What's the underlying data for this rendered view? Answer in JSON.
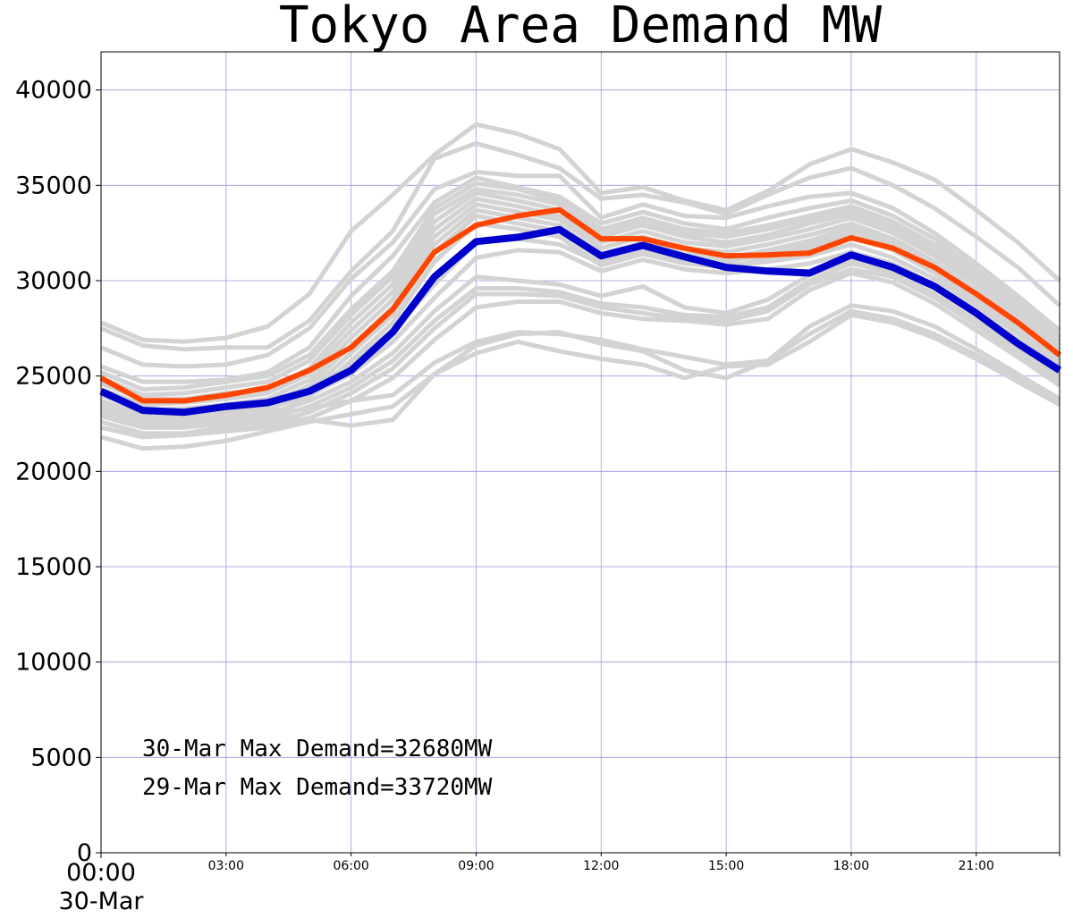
{
  "chart_data": {
    "type": "line",
    "title": "Tokyo Area Demand MW",
    "xlabel": "",
    "ylabel": "",
    "ylim": [
      0,
      42000
    ],
    "xlim": [
      0,
      23
    ],
    "yticks": [
      0,
      5000,
      10000,
      15000,
      20000,
      25000,
      30000,
      35000,
      40000
    ],
    "xticks": [
      {
        "hour": 3,
        "label": "03:00"
      },
      {
        "hour": 6,
        "label": "06:00"
      },
      {
        "hour": 9,
        "label": "09:00"
      },
      {
        "hour": 12,
        "label": "12:00"
      },
      {
        "hour": 15,
        "label": "15:00"
      },
      {
        "hour": 18,
        "label": "18:00"
      },
      {
        "hour": 21,
        "label": "21:00"
      }
    ],
    "x_start_label": "00:00",
    "x_date_label": "30-Mar",
    "grid": true,
    "x": [
      0,
      1,
      2,
      3,
      4,
      5,
      6,
      7,
      8,
      9,
      10,
      11,
      12,
      13,
      14,
      15,
      16,
      17,
      18,
      19,
      20,
      21,
      22,
      23
    ],
    "history": [
      [
        27800,
        26900,
        26800,
        27000,
        27600,
        29300,
        32600,
        34500,
        36600,
        38200,
        37700,
        36900,
        34600,
        34900,
        34200,
        33700,
        34700,
        36100,
        36900,
        36200,
        35300,
        33700,
        32000,
        30000
      ],
      [
        27500,
        26600,
        26400,
        26500,
        26500,
        27900,
        30500,
        32600,
        36400,
        37200,
        36600,
        35900,
        34300,
        34500,
        34100,
        33500,
        34500,
        35400,
        35900,
        35000,
        33800,
        32300,
        30700,
        28700
      ],
      [
        26500,
        25600,
        25500,
        25600,
        26100,
        27500,
        30100,
        32000,
        34800,
        35700,
        35500,
        35500,
        33300,
        34000,
        33400,
        33300,
        33900,
        34400,
        34600,
        33800,
        32500,
        30900,
        29200,
        27400
      ],
      [
        25500,
        24700,
        24700,
        24800,
        25200,
        26500,
        29200,
        31300,
        34100,
        35400,
        34900,
        34400,
        33000,
        33600,
        33000,
        32700,
        33300,
        33800,
        34200,
        33400,
        32200,
        30600,
        28900,
        27100
      ],
      [
        25200,
        24300,
        24400,
        24700,
        25000,
        26100,
        28500,
        30500,
        33800,
        35100,
        34800,
        34200,
        32700,
        33300,
        32700,
        32500,
        32900,
        33400,
        33900,
        33100,
        31900,
        30400,
        28800,
        27000
      ],
      [
        24900,
        24000,
        24100,
        24400,
        24700,
        25800,
        28200,
        30200,
        33500,
        34800,
        34500,
        34000,
        32500,
        33100,
        32500,
        32300,
        32700,
        33200,
        33700,
        32900,
        31700,
        30200,
        28600,
        26800
      ],
      [
        24600,
        23800,
        23800,
        24100,
        24300,
        25400,
        27800,
        29800,
        33100,
        34600,
        34200,
        33700,
        32300,
        32900,
        32300,
        32000,
        32400,
        33000,
        33500,
        32700,
        31500,
        30000,
        28400,
        26600
      ],
      [
        24300,
        23500,
        23600,
        23800,
        24100,
        25100,
        27400,
        29400,
        32700,
        34300,
        33900,
        33400,
        32000,
        32600,
        32000,
        31800,
        32200,
        32700,
        33300,
        32500,
        31300,
        29800,
        28200,
        26400
      ],
      [
        24000,
        23200,
        23300,
        23500,
        23800,
        24800,
        27000,
        29000,
        32300,
        34000,
        33600,
        33200,
        31700,
        32300,
        31700,
        31500,
        31900,
        32400,
        33000,
        32200,
        31000,
        29500,
        27900,
        26200
      ],
      [
        23700,
        23000,
        23000,
        23200,
        23500,
        24500,
        26600,
        28600,
        31900,
        33700,
        33300,
        32900,
        31400,
        32000,
        31400,
        31200,
        31600,
        32100,
        32800,
        32000,
        30800,
        29300,
        27700,
        26000
      ],
      [
        23400,
        22700,
        22700,
        22900,
        23200,
        24200,
        26200,
        28200,
        31500,
        33400,
        33000,
        32600,
        31100,
        31700,
        31100,
        31000,
        31400,
        31900,
        32600,
        31800,
        30600,
        29100,
        27500,
        25800
      ],
      [
        23100,
        22400,
        22400,
        22600,
        22900,
        23900,
        25800,
        27800,
        31000,
        33000,
        32700,
        32300,
        30800,
        31400,
        30900,
        30700,
        31200,
        31700,
        32400,
        31600,
        30400,
        28900,
        27300,
        25600
      ],
      [
        24000,
        23300,
        23200,
        23400,
        23600,
        24300,
        25600,
        27400,
        29800,
        32000,
        32200,
        31900,
        30900,
        31500,
        31000,
        30800,
        31000,
        31300,
        31900,
        31200,
        30100,
        28700,
        27200,
        25500
      ],
      [
        23600,
        22900,
        22900,
        23100,
        23300,
        24000,
        25100,
        26800,
        29100,
        31200,
        31600,
        31500,
        30500,
        31100,
        30600,
        30400,
        30600,
        30900,
        31500,
        30900,
        29800,
        28400,
        26900,
        25300
      ],
      [
        23200,
        22600,
        22600,
        22800,
        23000,
        23700,
        24700,
        26200,
        28400,
        30200,
        30000,
        29800,
        29200,
        29700,
        28600,
        28300,
        29000,
        30300,
        31100,
        30600,
        29600,
        28200,
        26700,
        25100
      ],
      [
        22900,
        22300,
        22300,
        22500,
        22700,
        23400,
        24400,
        25800,
        27900,
        29600,
        29600,
        29400,
        28800,
        28600,
        28200,
        28100,
        28600,
        30000,
        30900,
        30400,
        29300,
        27900,
        26400,
        24900
      ],
      [
        22600,
        22000,
        22000,
        22300,
        22500,
        23100,
        24100,
        25400,
        27500,
        29300,
        29300,
        29200,
        28600,
        28300,
        28000,
        27900,
        28400,
        29800,
        30600,
        30200,
        29100,
        27700,
        26200,
        24700
      ],
      [
        22300,
        21800,
        21900,
        22100,
        22300,
        22800,
        23700,
        24900,
        26900,
        28600,
        28900,
        28900,
        28300,
        28000,
        27900,
        27700,
        28000,
        29500,
        30400,
        29900,
        28800,
        27400,
        26000,
        24500
      ],
      [
        23500,
        22900,
        22800,
        22900,
        23000,
        23300,
        23700,
        24000,
        25700,
        26800,
        27300,
        27200,
        26900,
        26400,
        26000,
        25600,
        25800,
        27600,
        28700,
        28400,
        27600,
        26400,
        25100,
        23800
      ],
      [
        23000,
        22500,
        22500,
        22700,
        22800,
        22700,
        22400,
        22700,
        25100,
        26600,
        27200,
        27300,
        26700,
        26300,
        25300,
        24900,
        25800,
        27200,
        28400,
        28000,
        27200,
        26100,
        24900,
        23700
      ],
      [
        21800,
        21200,
        21300,
        21600,
        22100,
        22600,
        23000,
        23400,
        25100,
        26200,
        26800,
        26300,
        25900,
        25600,
        24900,
        25500,
        25600,
        26800,
        28200,
        27800,
        27000,
        25900,
        24700,
        23500
      ]
    ],
    "series": [
      {
        "name": "29-Mar",
        "color": "#ff4500",
        "values": [
          24900,
          23700,
          23700,
          24000,
          24400,
          25300,
          26500,
          28500,
          31500,
          32900,
          33400,
          33720,
          32200,
          32200,
          31700,
          31300,
          31350,
          31450,
          32250,
          31700,
          30700,
          29300,
          27800,
          26100
        ]
      },
      {
        "name": "30-Mar",
        "color": "#0000cd",
        "values": [
          24200,
          23200,
          23100,
          23400,
          23600,
          24200,
          25300,
          27300,
          30200,
          32050,
          32280,
          32680,
          31300,
          31850,
          31250,
          30700,
          30500,
          30400,
          31350,
          30700,
          29700,
          28300,
          26700,
          25300
        ]
      }
    ],
    "history_color": "#d3d3d3",
    "grid_color": "#9999dd",
    "annotations": [
      "30-Mar Max Demand=32680MW",
      "29-Mar Max Demand=33720MW"
    ]
  }
}
